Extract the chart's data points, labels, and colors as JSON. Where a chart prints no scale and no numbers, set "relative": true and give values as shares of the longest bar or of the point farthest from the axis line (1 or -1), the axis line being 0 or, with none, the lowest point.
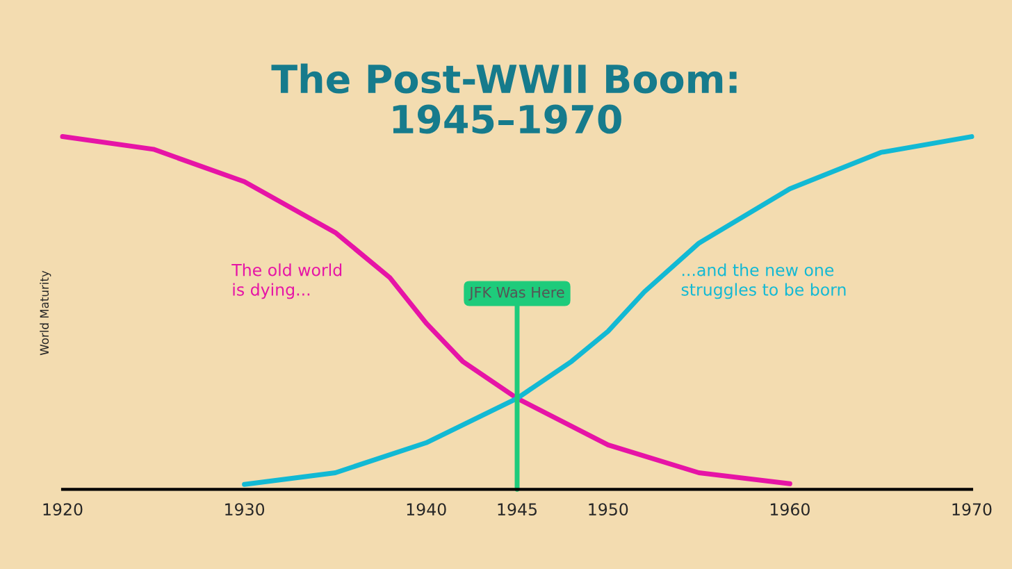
{
  "chart_data": {
    "type": "line",
    "title": "The Post-WWII Boom:\n1945–1970",
    "ylabel": "World Maturity",
    "relative": true,
    "tick_labels": "x",
    "grid": false,
    "legend": false,
    "xlim": [
      1920,
      1970
    ],
    "xticks": [
      1920,
      1930,
      1940,
      1945,
      1950,
      1960,
      1970
    ],
    "series": [
      {
        "color": "#e614a6",
        "x": [
          1920,
          1925,
          1930,
          1935,
          1938,
          1940,
          1942,
          1945,
          1950,
          1955,
          1960
        ],
        "values": [
          1.0,
          0.964,
          0.872,
          0.728,
          0.6,
          0.471,
          0.363,
          0.258,
          0.126,
          0.047,
          0.016
        ]
      },
      {
        "color": "#12b9d4",
        "x": [
          1930,
          1935,
          1940,
          1945,
          1948,
          1950,
          1952,
          1955,
          1960,
          1965,
          1970
        ],
        "values": [
          0.014,
          0.047,
          0.132,
          0.258,
          0.363,
          0.448,
          0.56,
          0.698,
          0.852,
          0.955,
          1.0
        ]
      }
    ],
    "ref_lines": [
      {
        "axis": "x",
        "value": 1945,
        "label": "JFK Was Here",
        "color": "#1ecb7b"
      }
    ],
    "annotations": [
      "The old world\nis dying...",
      "...and the new one\nstruggles to be born"
    ]
  }
}
